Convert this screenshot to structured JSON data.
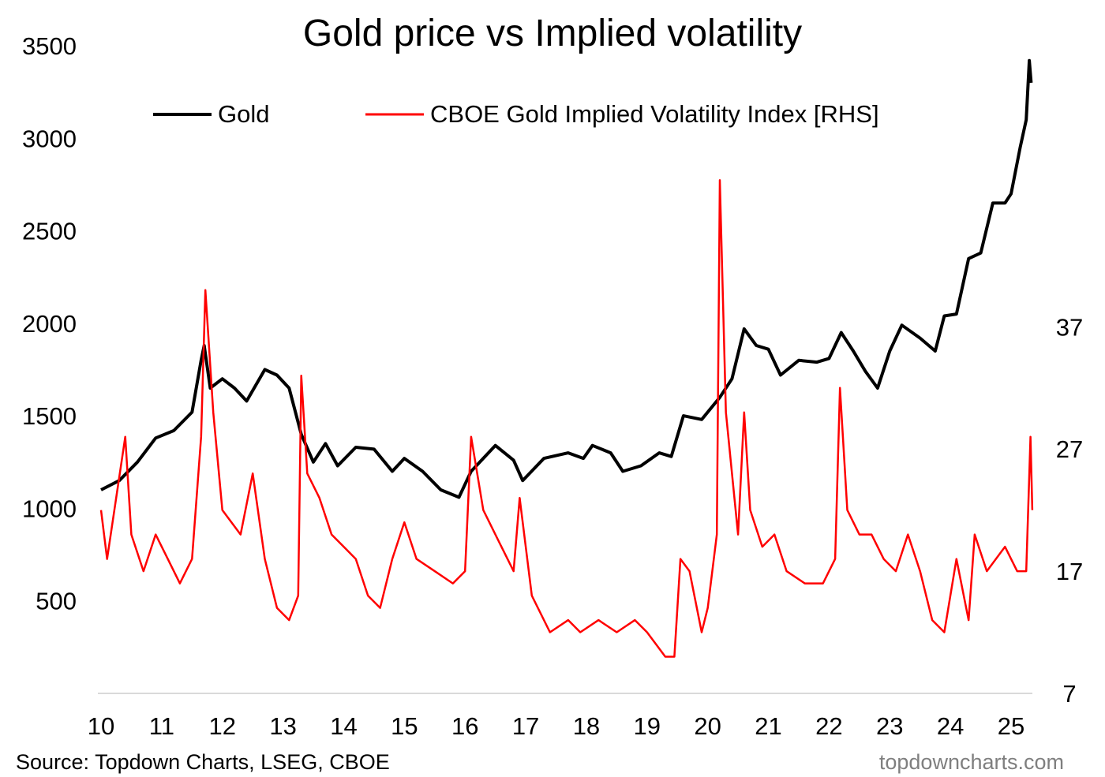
{
  "chart_data": {
    "type": "line",
    "title": "Gold price vs Implied volatility",
    "xlabel": "",
    "ylabel": "",
    "x_ticks": [
      "10",
      "11",
      "12",
      "13",
      "14",
      "15",
      "16",
      "17",
      "18",
      "19",
      "20",
      "21",
      "22",
      "23",
      "24",
      "25"
    ],
    "xlim": [
      2010,
      2025.4
    ],
    "left_axis": {
      "ticks": [
        500,
        1000,
        1500,
        2000,
        2500,
        3000,
        3500
      ],
      "ylim": [
        0,
        3500
      ]
    },
    "right_axis": {
      "ticks": [
        7,
        17,
        27,
        37
      ],
      "ylim": [
        7,
        60
      ]
    },
    "legend": {
      "placement": "top",
      "entries": [
        "Gold",
        "CBOE Gold Implied Volatility Index [RHS]"
      ]
    },
    "grid": false,
    "series": [
      {
        "name": "Gold",
        "axis": "left",
        "color": "#000000",
        "x": [
          2010.0,
          2010.3,
          2010.6,
          2010.9,
          2011.2,
          2011.5,
          2011.65,
          2011.7,
          2011.8,
          2012.0,
          2012.2,
          2012.4,
          2012.7,
          2012.9,
          2013.1,
          2013.3,
          2013.5,
          2013.7,
          2013.9,
          2014.2,
          2014.5,
          2014.8,
          2015.0,
          2015.3,
          2015.6,
          2015.9,
          2016.1,
          2016.5,
          2016.8,
          2016.95,
          2017.3,
          2017.7,
          2017.95,
          2018.1,
          2018.4,
          2018.6,
          2018.9,
          2019.2,
          2019.4,
          2019.6,
          2019.9,
          2020.2,
          2020.4,
          2020.6,
          2020.8,
          2021.0,
          2021.2,
          2021.5,
          2021.8,
          2022.0,
          2022.2,
          2022.4,
          2022.6,
          2022.8,
          2023.0,
          2023.2,
          2023.5,
          2023.75,
          2023.9,
          2024.1,
          2024.3,
          2024.5,
          2024.7,
          2024.9,
          2025.0,
          2025.15,
          2025.25,
          2025.3,
          2025.33
        ],
        "y": [
          1100,
          1150,
          1250,
          1380,
          1420,
          1520,
          1800,
          1880,
          1650,
          1700,
          1650,
          1580,
          1750,
          1720,
          1650,
          1400,
          1250,
          1350,
          1230,
          1330,
          1320,
          1200,
          1270,
          1200,
          1100,
          1060,
          1200,
          1340,
          1260,
          1150,
          1270,
          1300,
          1270,
          1340,
          1300,
          1200,
          1230,
          1300,
          1280,
          1500,
          1480,
          1600,
          1700,
          1970,
          1880,
          1860,
          1720,
          1800,
          1790,
          1810,
          1950,
          1850,
          1740,
          1650,
          1850,
          1990,
          1920,
          1850,
          2040,
          2050,
          2350,
          2380,
          2650,
          2650,
          2700,
          2950,
          3100,
          3420,
          3300
        ]
      },
      {
        "name": "CBOE Gold Implied Volatility Index [RHS]",
        "axis": "right",
        "color": "#ff0000",
        "x": [
          2010.0,
          2010.1,
          2010.4,
          2010.5,
          2010.7,
          2010.9,
          2011.1,
          2011.3,
          2011.5,
          2011.65,
          2011.72,
          2011.85,
          2012.0,
          2012.3,
          2012.5,
          2012.7,
          2012.9,
          2013.1,
          2013.25,
          2013.3,
          2013.4,
          2013.6,
          2013.8,
          2014.0,
          2014.2,
          2014.4,
          2014.6,
          2014.8,
          2015.0,
          2015.2,
          2015.5,
          2015.8,
          2016.0,
          2016.1,
          2016.3,
          2016.6,
          2016.8,
          2016.9,
          2017.1,
          2017.4,
          2017.7,
          2017.9,
          2018.2,
          2018.5,
          2018.8,
          2019.0,
          2019.3,
          2019.45,
          2019.55,
          2019.7,
          2019.9,
          2020.0,
          2020.15,
          2020.2,
          2020.3,
          2020.4,
          2020.5,
          2020.6,
          2020.7,
          2020.9,
          2021.1,
          2021.3,
          2021.6,
          2021.9,
          2022.1,
          2022.18,
          2022.3,
          2022.5,
          2022.7,
          2022.9,
          2023.1,
          2023.3,
          2023.5,
          2023.7,
          2023.9,
          2024.1,
          2024.3,
          2024.4,
          2024.6,
          2024.9,
          2025.1,
          2025.25,
          2025.32,
          2025.35
        ],
        "y": [
          22,
          18,
          28,
          20,
          17,
          20,
          18,
          16,
          18,
          28,
          40,
          30,
          22,
          20,
          25,
          18,
          14,
          13,
          15,
          33,
          25,
          23,
          20,
          19,
          18,
          15,
          14,
          18,
          21,
          18,
          17,
          16,
          17,
          28,
          22,
          19,
          17,
          23,
          15,
          12,
          13,
          12,
          13,
          12,
          13,
          12,
          10,
          10,
          18,
          17,
          12,
          14,
          20,
          49,
          30,
          25,
          20,
          30,
          22,
          19,
          20,
          17,
          16,
          16,
          18,
          32,
          22,
          20,
          20,
          18,
          17,
          20,
          17,
          13,
          12,
          18,
          13,
          20,
          17,
          19,
          17,
          17,
          28,
          22
        ]
      }
    ],
    "source": "Source: Topdown Charts, LSEG, CBOE",
    "watermark": "topdowncharts.com"
  }
}
